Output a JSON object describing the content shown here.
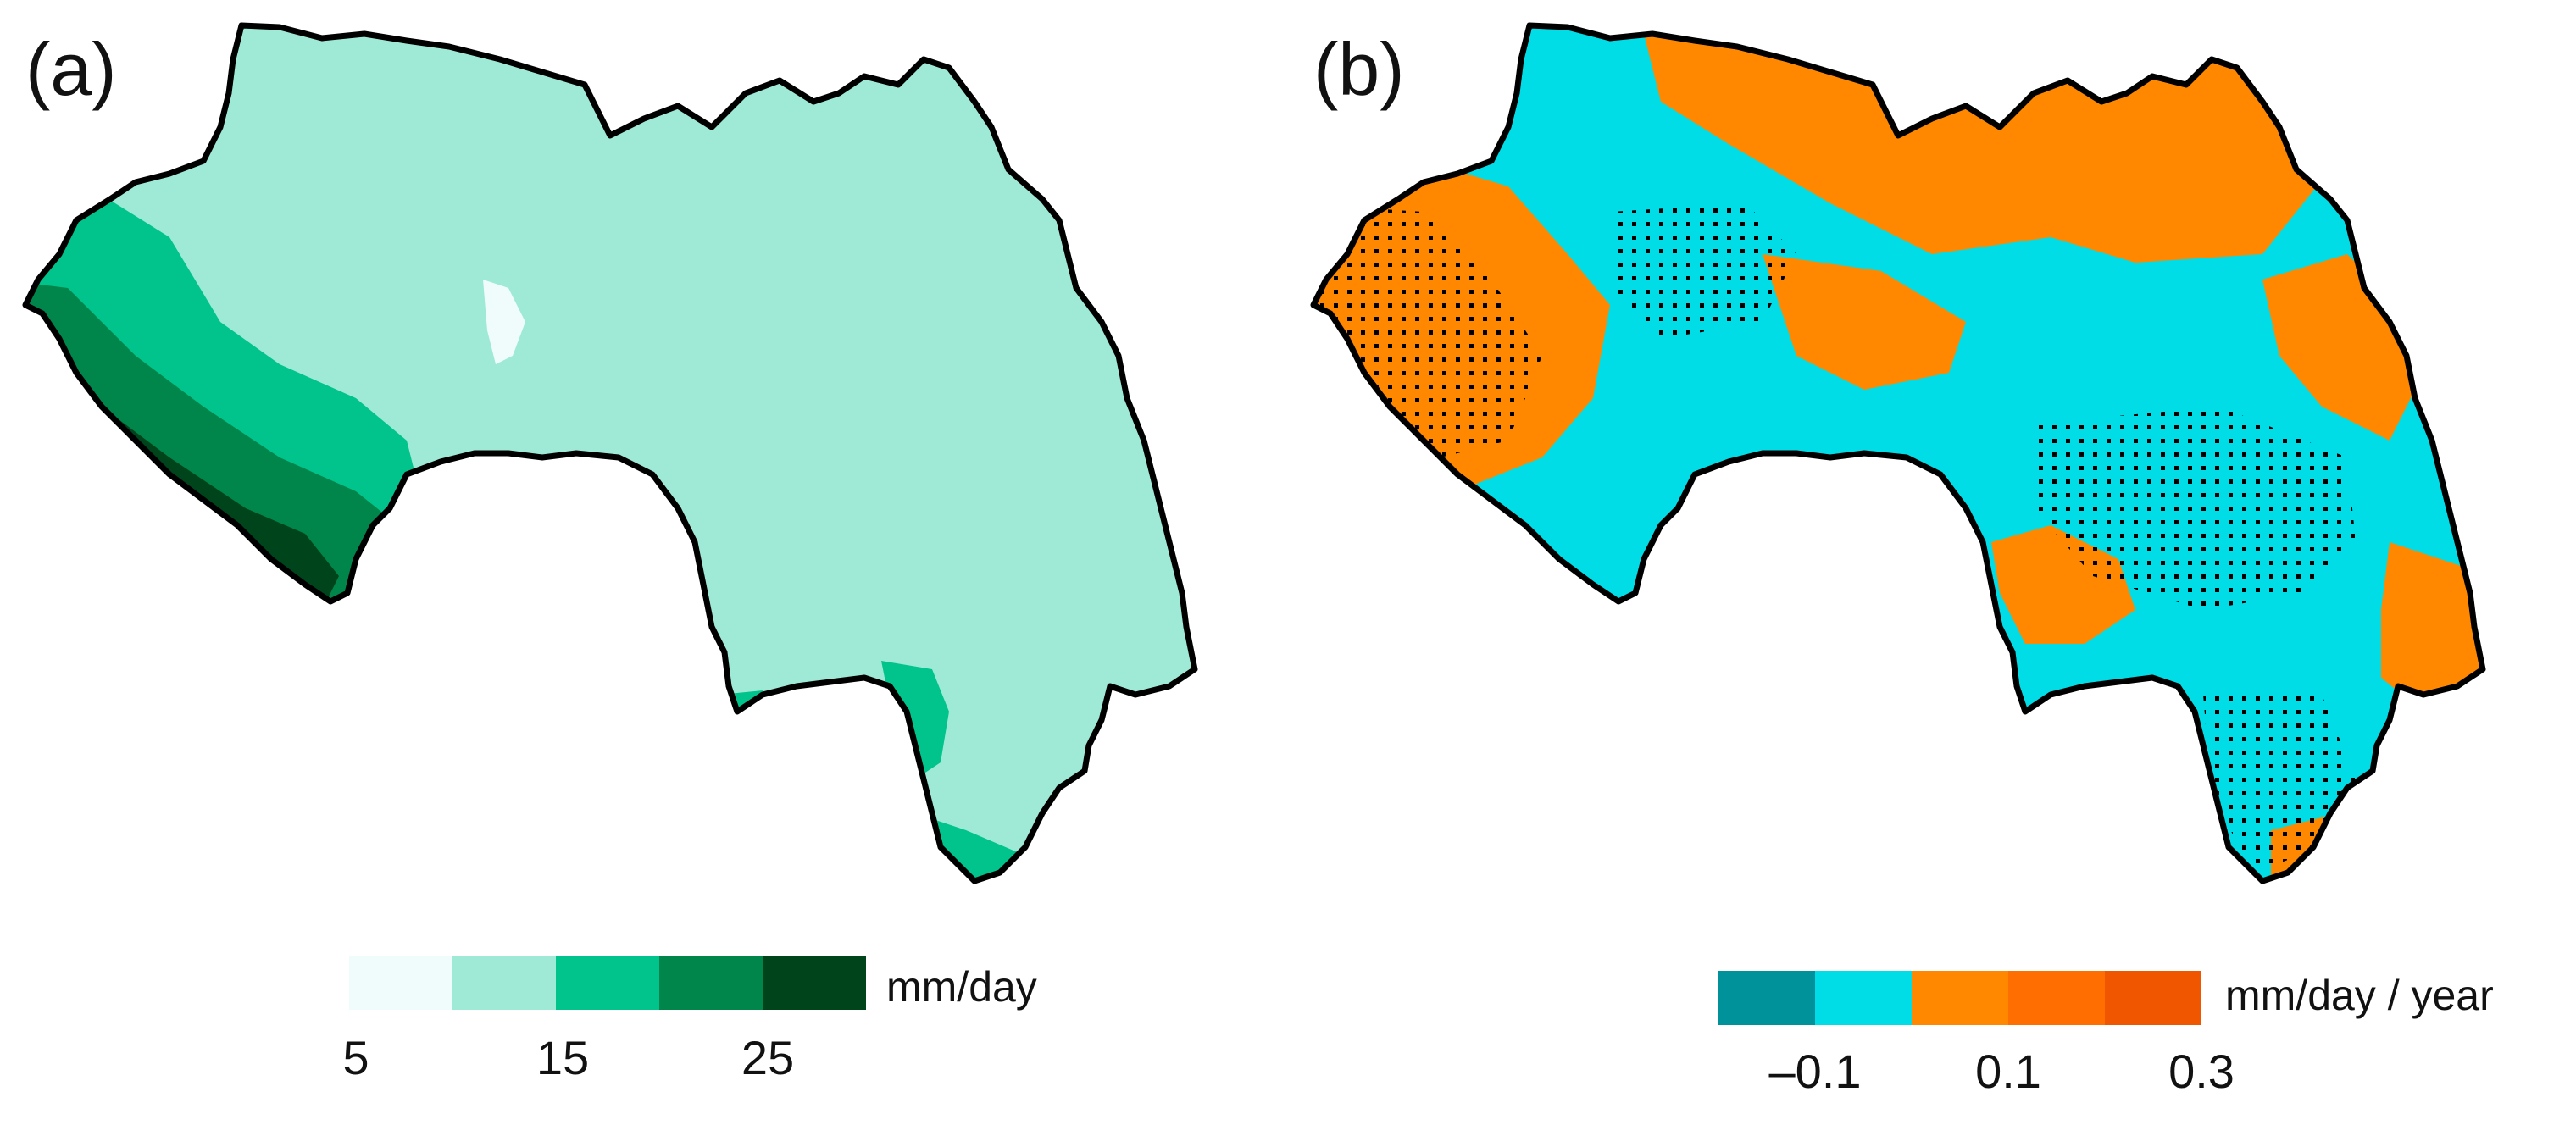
{
  "panels": {
    "a": {
      "label": "(a)",
      "colorbar": {
        "unit": "mm/day",
        "colors": [
          "#f0fcfb",
          "#9eead6",
          "#00c48b",
          "#00854a",
          "#00441b"
        ],
        "ticks": [
          "5",
          "15",
          "25"
        ]
      }
    },
    "b": {
      "label": "(b)",
      "colorbar": {
        "unit": "mm/day / year",
        "colors": [
          "#00929b",
          "#00dde6",
          "#ff8800",
          "#ff6e00",
          "#f05500"
        ],
        "ticks": [
          "–0.1",
          "0.1",
          "0.3"
        ]
      }
    }
  }
}
